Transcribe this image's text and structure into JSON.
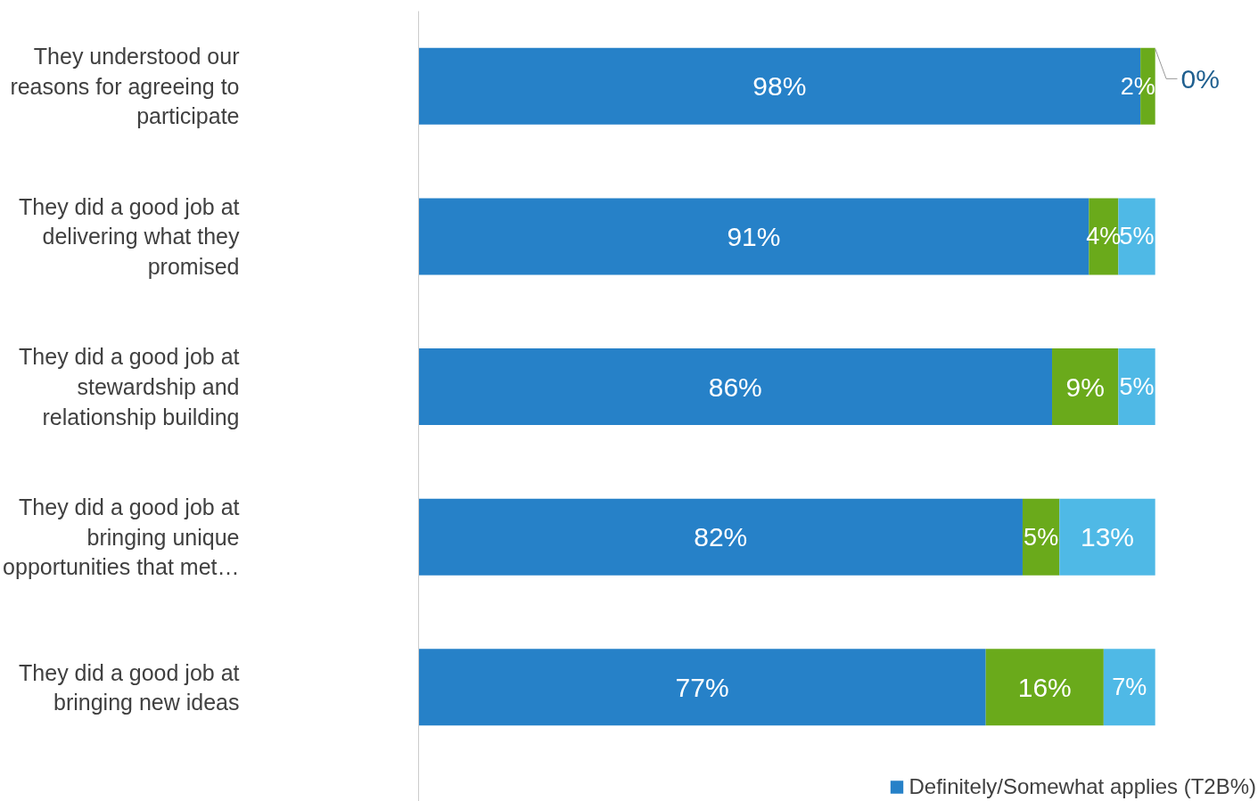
{
  "chart_data": {
    "type": "bar",
    "orientation": "horizontal",
    "stacked": true,
    "categories": [
      "They understood our reasons for agreeing to participate",
      "They did a good job at delivering what they promised",
      "They did a good job at stewardship and relationship building",
      "They did a good job at bringing unique opportunities that met…",
      "They did a good job at bringing new ideas"
    ],
    "series": [
      {
        "name": "Definitely/Somewhat applies (T2B%)",
        "color": "#2681c8",
        "values": [
          98,
          91,
          86,
          82,
          77
        ],
        "value_labels": [
          "98%",
          "91%",
          "86%",
          "82%",
          "77%"
        ]
      },
      {
        "color": "#6aaa1b",
        "values": [
          2,
          4,
          9,
          5,
          16
        ],
        "value_labels": [
          "2%",
          "4%",
          "9%",
          "5%",
          "16%"
        ]
      },
      {
        "color": "#4fb9e6",
        "values": [
          0,
          5,
          5,
          13,
          7
        ],
        "value_labels": [
          "0%",
          "5%",
          "5%",
          "13%",
          "7%"
        ]
      }
    ],
    "legend": "bottom right",
    "grid": false
  }
}
